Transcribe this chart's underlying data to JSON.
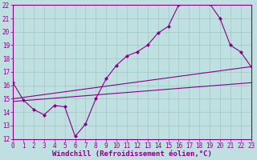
{
  "title": "",
  "xlabel": "Windchill (Refroidissement éolien,°C)",
  "ylabel": "",
  "bg_color": "#c0dfe0",
  "line_color": "#880088",
  "x_min": 0,
  "x_max": 23,
  "y_min": 12,
  "y_max": 22,
  "line1_x": [
    0,
    1,
    2,
    3,
    4,
    5,
    6,
    7,
    8,
    9,
    10,
    11,
    12,
    13,
    14,
    15,
    16,
    17,
    18,
    19,
    20,
    21,
    22,
    23
  ],
  "line1_y": [
    16.2,
    14.9,
    14.2,
    13.8,
    14.5,
    14.4,
    12.2,
    13.1,
    15.0,
    16.5,
    17.5,
    18.2,
    18.5,
    19.0,
    19.9,
    20.4,
    22.0,
    22.2,
    22.5,
    22.1,
    21.0,
    19.0,
    18.5,
    17.4
  ],
  "line2_x": [
    0,
    23
  ],
  "line2_y": [
    15.0,
    17.4
  ],
  "line3_x": [
    0,
    23
  ],
  "line3_y": [
    14.8,
    16.2
  ],
  "grid_color": "#a0c8c8",
  "tick_fontsize": 5.5,
  "label_fontsize": 6.5
}
